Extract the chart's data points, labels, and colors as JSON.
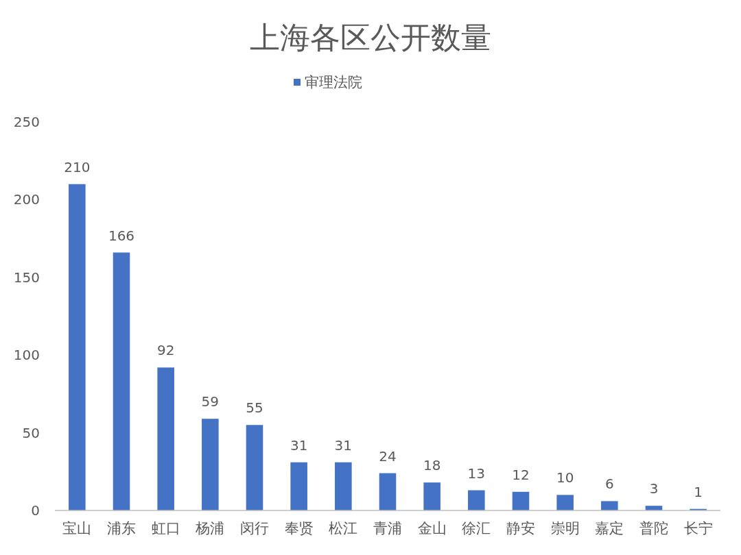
{
  "chart_data": {
    "type": "bar",
    "title": "上海各区公开数量",
    "categories": [
      "宝山",
      "浦东",
      "虹口",
      "杨浦",
      "闵行",
      "奉贤",
      "松江",
      "青浦",
      "金山",
      "徐汇",
      "静安",
      "崇明",
      "嘉定",
      "普陀",
      "长宁"
    ],
    "series": [
      {
        "name": "审理法院",
        "color": "#4472c4",
        "values": [
          210,
          166,
          92,
          59,
          55,
          31,
          31,
          24,
          18,
          13,
          12,
          10,
          6,
          3,
          1
        ]
      }
    ],
    "ylim": [
      0,
      250
    ],
    "yticks": [
      0,
      50,
      100,
      150,
      200,
      250
    ],
    "data_labels": true,
    "legend": "top"
  }
}
